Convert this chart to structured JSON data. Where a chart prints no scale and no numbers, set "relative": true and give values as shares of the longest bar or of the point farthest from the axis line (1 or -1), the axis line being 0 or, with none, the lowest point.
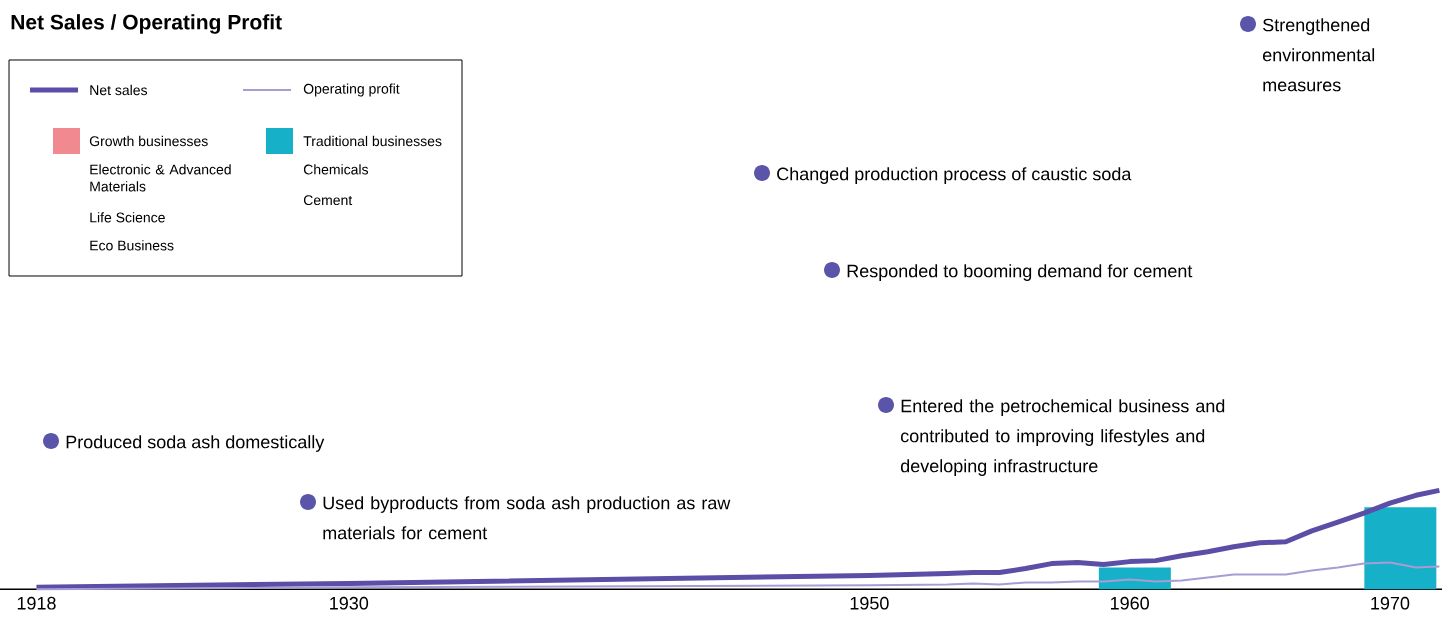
{
  "chart_data": {
    "type": "line",
    "title": "Net Sales / Operating Profit",
    "relative": true,
    "legend": "top left",
    "xlim": [
      1916.6,
      1972
    ],
    "xticks": [
      1918,
      1930,
      1950,
      1960,
      1970
    ],
    "series": [
      {
        "name": "Net sales",
        "color": "#5b4ea6",
        "x": [
          1918,
          1930,
          1950,
          1953,
          1954,
          1955,
          1956,
          1957,
          1958,
          1959,
          1960,
          1961,
          1962,
          1963,
          1964,
          1965,
          1966,
          1967,
          1968,
          1969,
          1970,
          1971,
          1971.9
        ],
        "values": [
          0.02,
          0.06,
          0.14,
          0.16,
          0.17,
          0.17,
          0.21,
          0.26,
          0.27,
          0.25,
          0.28,
          0.29,
          0.34,
          0.38,
          0.43,
          0.47,
          0.48,
          0.59,
          0.68,
          0.77,
          0.87,
          0.95,
          1
        ]
      },
      {
        "name": "Operating profit",
        "color": "#a99bd4",
        "x": [
          1918,
          1930,
          1950,
          1953,
          1954,
          1955,
          1956,
          1957,
          1958,
          1959,
          1960,
          1961,
          1962,
          1963,
          1964,
          1965,
          1966,
          1967,
          1968,
          1969,
          1970,
          1971,
          1971.9
        ],
        "values": [
          0.0,
          0.02,
          0.04,
          0.05,
          0.06,
          0.05,
          0.07,
          0.07,
          0.08,
          0.08,
          0.1,
          0.08,
          0.09,
          0.12,
          0.15,
          0.15,
          0.15,
          0.19,
          0.22,
          0.26,
          0.27,
          0.22,
          0.23
        ]
      },
      {
        "name": "Growth businesses",
        "type": "bar",
        "color": "#f08a90",
        "values": [
          null,
          null
        ]
      },
      {
        "name": "Traditional businesses",
        "type": "bar",
        "color": "#16b1c9",
        "x": [
          1960.2,
          1970.4
        ],
        "values": [
          0.22,
          0.83
        ]
      }
    ],
    "annotations": [
      "Produced soda ash domestically",
      "Used byproducts from soda ash production as raw materials for cement",
      "Entered the petrochemical business and contributed to improving lifestyles and developing infrastructure",
      "Responded to booming demand for cement",
      "Changed production process of caustic soda",
      "Strengthened environmental measures",
      "Electronic & Advanced Materials",
      "Life Science",
      "Eco Business",
      "Chemicals",
      "Cement"
    ]
  }
}
